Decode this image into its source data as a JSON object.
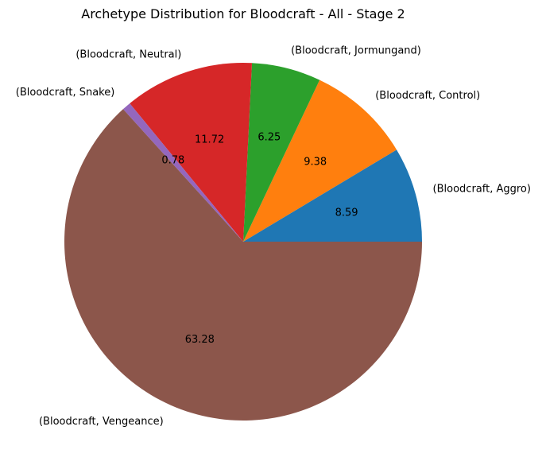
{
  "chart_data": {
    "type": "pie",
    "title": "Archetype Distribution for Bloodcraft - All - Stage 2",
    "categories": [
      "(Bloodcraft, Aggro)",
      "(Bloodcraft, Control)",
      "(Bloodcraft, Jormungand)",
      "(Bloodcraft, Neutral)",
      "(Bloodcraft, Snake)",
      "(Bloodcraft, Vengeance)"
    ],
    "values": [
      8.59,
      9.38,
      6.25,
      11.72,
      0.78,
      63.28
    ],
    "value_labels": [
      "8.59",
      "9.38",
      "6.25",
      "11.72",
      "0.78",
      "63.28"
    ],
    "colors": [
      "#1f77b4",
      "#ff7f0e",
      "#2ca02c",
      "#d62728",
      "#9467bd",
      "#8c564b"
    ],
    "start_angle": 0,
    "direction": "counterclockwise",
    "legend": "none"
  }
}
